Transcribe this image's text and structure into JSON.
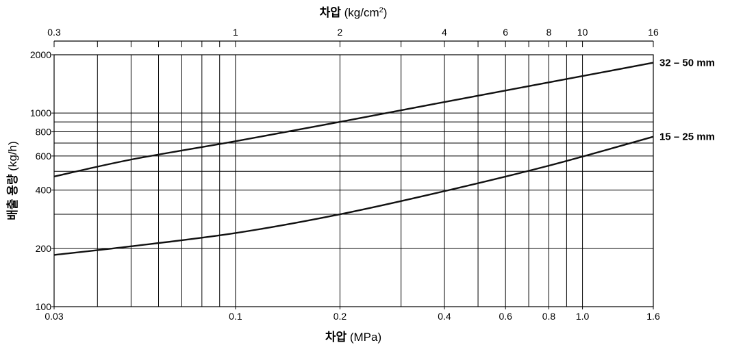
{
  "chart_data": {
    "type": "line",
    "x_scale": "log",
    "y_scale": "log",
    "grid": true,
    "top_axis": {
      "title_bold": "차압",
      "title_rest": "(kg/cm",
      "title_sup": "2",
      "title_close": ")",
      "range": [
        0.3,
        16
      ],
      "ticks": [
        {
          "value": 0.3,
          "label": "0.3"
        },
        {
          "value": 1,
          "label": "1"
        },
        {
          "value": 2,
          "label": "2"
        },
        {
          "value": 4,
          "label": "4"
        },
        {
          "value": 6,
          "label": "6"
        },
        {
          "value": 8,
          "label": "8"
        },
        {
          "value": 10,
          "label": "10"
        },
        {
          "value": 16,
          "label": "16"
        }
      ],
      "minor_ticks": [
        0.4,
        0.5,
        0.6,
        0.7,
        0.8,
        0.9,
        3,
        5,
        7,
        9
      ]
    },
    "bottom_axis": {
      "title_bold": "차압",
      "title_rest": "(MPa)",
      "range": [
        0.03,
        1.6
      ],
      "ticks": [
        {
          "value": 0.03,
          "label": "0.03"
        },
        {
          "value": 0.1,
          "label": "0.1"
        },
        {
          "value": 0.2,
          "label": "0.2"
        },
        {
          "value": 0.4,
          "label": "0.4"
        },
        {
          "value": 0.6,
          "label": "0.6"
        },
        {
          "value": 0.8,
          "label": "0.8"
        },
        {
          "value": 1.0,
          "label": "1.0"
        },
        {
          "value": 1.6,
          "label": "1.6"
        }
      ],
      "gridlines": [
        0.04,
        0.05,
        0.06,
        0.07,
        0.08,
        0.09,
        0.1,
        0.2,
        0.3,
        0.4,
        0.5,
        0.6,
        0.7,
        0.8,
        0.9,
        1.0
      ]
    },
    "y_axis": {
      "title_bold": "배출 용량",
      "title_rest": "(kg/h)",
      "range": [
        100,
        2000
      ],
      "ticks": [
        {
          "value": 100,
          "label": "100"
        },
        {
          "value": 200,
          "label": "200"
        },
        {
          "value": 400,
          "label": "400"
        },
        {
          "value": 600,
          "label": "600"
        },
        {
          "value": 800,
          "label": "800"
        },
        {
          "value": 1000,
          "label": "1000"
        },
        {
          "value": 2000,
          "label": "2000"
        }
      ],
      "gridlines": [
        200,
        300,
        400,
        500,
        600,
        700,
        800,
        900,
        1000
      ]
    },
    "series": [
      {
        "name": "32 – 50 mm",
        "x": [
          0.03,
          0.05,
          0.1,
          0.2,
          0.4,
          0.8,
          1.6
        ],
        "y": [
          470,
          575,
          715,
          900,
          1140,
          1440,
          1820
        ]
      },
      {
        "name": "15 – 25 mm",
        "x": [
          0.03,
          0.05,
          0.1,
          0.2,
          0.4,
          0.8,
          1.6
        ],
        "y": [
          185,
          205,
          240,
          300,
          395,
          535,
          755
        ]
      }
    ]
  }
}
